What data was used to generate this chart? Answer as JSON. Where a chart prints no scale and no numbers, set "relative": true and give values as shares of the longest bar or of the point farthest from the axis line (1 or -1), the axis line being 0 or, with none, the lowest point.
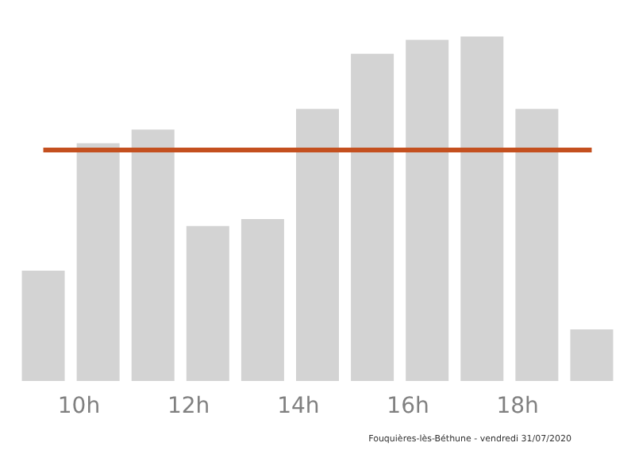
{
  "chart_data": {
    "type": "bar",
    "relative": true,
    "x": [
      9.35,
      10.35,
      11.35,
      12.35,
      13.35,
      14.35,
      15.35,
      16.35,
      17.35,
      18.35,
      19.35
    ],
    "values": [
      0.32,
      0.69,
      0.73,
      0.45,
      0.47,
      0.79,
      0.95,
      0.99,
      1,
      0.79,
      0.15
    ],
    "color": "#d3d3d3",
    "xlim": [
      8.85,
      19.85
    ],
    "xticks": [
      {
        "value": 10,
        "label": "10h"
      },
      {
        "value": 12,
        "label": "12h"
      },
      {
        "value": 14,
        "label": "14h"
      },
      {
        "value": 16,
        "label": "16h"
      },
      {
        "value": 18,
        "label": "18h"
      }
    ],
    "ref_lines": [
      {
        "axis": "y",
        "value": 0.67,
        "color": "#c4501f"
      }
    ],
    "annotations": [
      "Fouquières-lès-Béthune - vendredi 31/07/2020"
    ],
    "grid": false
  }
}
